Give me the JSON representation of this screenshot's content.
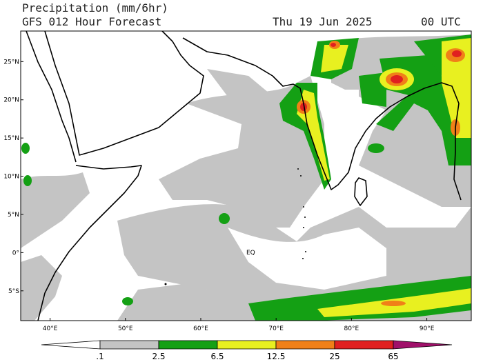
{
  "header": {
    "title": "Precipitation (mm/6hr)",
    "subtitle": "GFS 012 Hour Forecast",
    "date": "Thu 19 Jun 2025",
    "time": "00 UTC"
  },
  "map": {
    "lonlim": [
      36.1,
      95.9
    ],
    "latlim": [
      -8.9,
      29
    ],
    "lonticks": [
      {
        "value": 40,
        "label": "40°E"
      },
      {
        "value": 50,
        "label": "50°E"
      },
      {
        "value": 60,
        "label": "60°E"
      },
      {
        "value": 70,
        "label": "70°E"
      },
      {
        "value": 80,
        "label": "80°E"
      },
      {
        "value": 90,
        "label": "90°E"
      }
    ],
    "latticks": [
      {
        "value": 25,
        "label": "25°N"
      },
      {
        "value": 20,
        "label": "20°N"
      },
      {
        "value": 15,
        "label": "15°N"
      },
      {
        "value": 10,
        "label": "10°N"
      },
      {
        "value": 5,
        "label": "5°N"
      },
      {
        "value": 0,
        "label": "0°"
      },
      {
        "value": -5,
        "label": "5°S"
      }
    ],
    "equator_label": "EQ"
  },
  "colorbar": {
    "levels": [
      {
        "value": 0.1,
        "label": ".1"
      },
      2.5,
      6.5,
      12.5,
      25,
      65
    ],
    "colors": [
      "#ffffff",
      "#c4c4c4",
      "#14a014",
      "#e8f020",
      "#f08018",
      "#e02020",
      "#a0106a"
    ]
  }
}
